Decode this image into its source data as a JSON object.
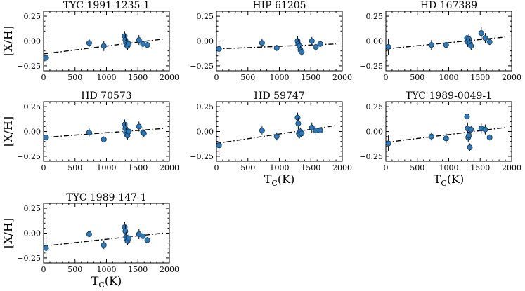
{
  "figure": {
    "xlabel_main": "T",
    "xlabel_sub": "C",
    "xlabel_unit": "(K)",
    "ylabel": "[X/H]",
    "marker_color": "#2e78b5"
  },
  "chart_data": [
    {
      "type": "scatter",
      "title": "TYC 1991-1235-1",
      "xlim": [
        0,
        2000
      ],
      "ylim": [
        -0.3,
        0.3
      ],
      "xticks": [
        "0",
        "500",
        "1000",
        "1500",
        "2000"
      ],
      "yticks": [
        "0.25",
        "0.00",
        "−0.25"
      ],
      "show_xlabel": false,
      "show_ylabel": true,
      "points": [
        {
          "x": 40,
          "y": -0.17,
          "err": 0.08
        },
        {
          "x": 725,
          "y": -0.02,
          "err": 0.04
        },
        {
          "x": 958,
          "y": -0.05,
          "err": 0.05
        },
        {
          "x": 1290,
          "y": 0.05,
          "err": 0.05
        },
        {
          "x": 1300,
          "y": 0.01,
          "err": 0.06
        },
        {
          "x": 1310,
          "y": -0.02,
          "err": 0.05
        },
        {
          "x": 1320,
          "y": -0.04,
          "err": 0.04
        },
        {
          "x": 1335,
          "y": -0.05,
          "err": 0.04
        },
        {
          "x": 1355,
          "y": -0.03,
          "err": 0.04
        },
        {
          "x": 1517,
          "y": 0.01,
          "err": 0.05
        },
        {
          "x": 1580,
          "y": -0.03,
          "err": 0.06
        },
        {
          "x": 1650,
          "y": -0.04,
          "err": 0.03
        }
      ],
      "fit": {
        "x": [
          0,
          1900
        ],
        "y": [
          -0.13,
          0.02
        ]
      }
    },
    {
      "type": "scatter",
      "title": "HIP 61205",
      "xlim": [
        0,
        2000
      ],
      "ylim": [
        -0.3,
        0.3
      ],
      "xticks": [
        "0",
        "500",
        "1000",
        "1500",
        "2000"
      ],
      "yticks": [
        "0.25",
        "0.00",
        "−0.25"
      ],
      "show_xlabel": false,
      "show_ylabel": false,
      "points": [
        {
          "x": 40,
          "y": -0.08,
          "err": 0.08
        },
        {
          "x": 725,
          "y": -0.02,
          "err": 0.04
        },
        {
          "x": 958,
          "y": -0.07,
          "err": 0.03
        },
        {
          "x": 1290,
          "y": 0.0,
          "err": 0.05
        },
        {
          "x": 1300,
          "y": -0.03,
          "err": 0.05
        },
        {
          "x": 1320,
          "y": -0.05,
          "err": 0.04
        },
        {
          "x": 1335,
          "y": -0.09,
          "err": 0.04
        },
        {
          "x": 1355,
          "y": -0.11,
          "err": 0.04
        },
        {
          "x": 1517,
          "y": 0.0,
          "err": 0.04
        },
        {
          "x": 1580,
          "y": -0.06,
          "err": 0.05
        },
        {
          "x": 1650,
          "y": -0.03,
          "err": 0.03
        }
      ],
      "fit": {
        "x": [
          0,
          1900
        ],
        "y": [
          -0.08,
          -0.03
        ]
      }
    },
    {
      "type": "scatter",
      "title": "HD 167389",
      "xlim": [
        0,
        2000
      ],
      "ylim": [
        -0.3,
        0.3
      ],
      "xticks": [
        "0",
        "500",
        "1000",
        "1500",
        "2000"
      ],
      "yticks": [
        "0.25",
        "0.00",
        "−0.25"
      ],
      "show_xlabel": false,
      "show_ylabel": false,
      "points": [
        {
          "x": 40,
          "y": -0.06,
          "err": 0.08
        },
        {
          "x": 725,
          "y": -0.04,
          "err": 0.05
        },
        {
          "x": 958,
          "y": -0.04,
          "err": 0.03
        },
        {
          "x": 1290,
          "y": 0.03,
          "err": 0.04
        },
        {
          "x": 1300,
          "y": -0.01,
          "err": 0.05
        },
        {
          "x": 1320,
          "y": 0.02,
          "err": 0.05
        },
        {
          "x": 1335,
          "y": -0.02,
          "err": 0.04
        },
        {
          "x": 1355,
          "y": -0.05,
          "err": 0.04
        },
        {
          "x": 1517,
          "y": 0.08,
          "err": 0.06
        },
        {
          "x": 1580,
          "y": 0.03,
          "err": 0.05
        },
        {
          "x": 1650,
          "y": -0.01,
          "err": 0.03
        }
      ],
      "fit": {
        "x": [
          0,
          1900
        ],
        "y": [
          -0.08,
          0.04
        ]
      }
    },
    {
      "type": "scatter",
      "title": "HD 70573",
      "xlim": [
        0,
        2000
      ],
      "ylim": [
        -0.3,
        0.3
      ],
      "xticks": [
        "0",
        "500",
        "1000",
        "1500",
        "2000"
      ],
      "yticks": [
        "0.25",
        "0.00",
        "−0.25"
      ],
      "show_xlabel": false,
      "show_ylabel": true,
      "points": [
        {
          "x": 40,
          "y": -0.06,
          "err": 0.13
        },
        {
          "x": 725,
          "y": -0.01,
          "err": 0.04
        },
        {
          "x": 958,
          "y": -0.08,
          "err": 0.03
        },
        {
          "x": 1290,
          "y": 0.07,
          "err": 0.05
        },
        {
          "x": 1300,
          "y": 0.03,
          "err": 0.06
        },
        {
          "x": 1310,
          "y": -0.01,
          "err": 0.05
        },
        {
          "x": 1320,
          "y": -0.03,
          "err": 0.04
        },
        {
          "x": 1335,
          "y": -0.04,
          "err": 0.04
        },
        {
          "x": 1355,
          "y": 0.0,
          "err": 0.04
        },
        {
          "x": 1517,
          "y": 0.05,
          "err": 0.05
        },
        {
          "x": 1580,
          "y": -0.01,
          "err": 0.06
        },
        {
          "x": 1595,
          "y": -0.02,
          "err": 0.04
        }
      ],
      "fit": {
        "x": [
          0,
          1900
        ],
        "y": [
          -0.06,
          0.03
        ]
      }
    },
    {
      "type": "scatter",
      "title": "HD 59747",
      "xlim": [
        0,
        2000
      ],
      "ylim": [
        -0.3,
        0.3
      ],
      "xticks": [
        "0",
        "500",
        "1000",
        "1500",
        "2000"
      ],
      "yticks": [
        "0.25",
        "0.00",
        "−0.25"
      ],
      "show_xlabel": true,
      "show_ylabel": false,
      "points": [
        {
          "x": 40,
          "y": -0.14,
          "err": 0.1
        },
        {
          "x": 725,
          "y": 0.01,
          "err": 0.04
        },
        {
          "x": 958,
          "y": -0.05,
          "err": 0.04
        },
        {
          "x": 1290,
          "y": 0.14,
          "err": 0.05
        },
        {
          "x": 1300,
          "y": 0.08,
          "err": 0.06
        },
        {
          "x": 1310,
          "y": -0.02,
          "err": 0.05
        },
        {
          "x": 1320,
          "y": -0.03,
          "err": 0.04
        },
        {
          "x": 1335,
          "y": 0.0,
          "err": 0.04
        },
        {
          "x": 1355,
          "y": -0.02,
          "err": 0.04
        },
        {
          "x": 1517,
          "y": 0.04,
          "err": 0.05
        },
        {
          "x": 1580,
          "y": 0.01,
          "err": 0.05
        },
        {
          "x": 1650,
          "y": 0.01,
          "err": 0.03
        }
      ],
      "fit": {
        "x": [
          0,
          1900
        ],
        "y": [
          -0.12,
          0.06
        ]
      }
    },
    {
      "type": "scatter",
      "title": "TYC 1989-0049-1",
      "xlim": [
        0,
        2000
      ],
      "ylim": [
        -0.3,
        0.3
      ],
      "xticks": [
        "0",
        "500",
        "1000",
        "1500",
        "2000"
      ],
      "yticks": [
        "0.25",
        "0.00",
        "−0.25"
      ],
      "show_xlabel": true,
      "show_ylabel": false,
      "points": [
        {
          "x": 40,
          "y": -0.12,
          "err": 0.08
        },
        {
          "x": 725,
          "y": -0.05,
          "err": 0.04
        },
        {
          "x": 958,
          "y": -0.07,
          "err": 0.05
        },
        {
          "x": 1290,
          "y": 0.15,
          "err": 0.05
        },
        {
          "x": 1300,
          "y": 0.03,
          "err": 0.06
        },
        {
          "x": 1310,
          "y": -0.06,
          "err": 0.05
        },
        {
          "x": 1320,
          "y": -0.04,
          "err": 0.04
        },
        {
          "x": 1335,
          "y": -0.16,
          "err": 0.04
        },
        {
          "x": 1355,
          "y": 0.02,
          "err": 0.04
        },
        {
          "x": 1517,
          "y": 0.03,
          "err": 0.05
        },
        {
          "x": 1580,
          "y": 0.02,
          "err": 0.05
        },
        {
          "x": 1650,
          "y": -0.06,
          "err": 0.03
        }
      ],
      "fit": {
        "x": [
          0,
          1900
        ],
        "y": [
          -0.11,
          0.04
        ]
      }
    },
    {
      "type": "scatter",
      "title": "TYC 1989-147-1",
      "xlim": [
        0,
        2000
      ],
      "ylim": [
        -0.3,
        0.3
      ],
      "xticks": [
        "0",
        "500",
        "1000",
        "1500",
        "2000"
      ],
      "yticks": [
        "0.25",
        "0.00",
        "−0.25"
      ],
      "show_xlabel": true,
      "show_ylabel": true,
      "points": [
        {
          "x": 40,
          "y": -0.15,
          "err": 0.12
        },
        {
          "x": 725,
          "y": -0.01,
          "err": 0.03
        },
        {
          "x": 958,
          "y": -0.12,
          "err": 0.04
        },
        {
          "x": 1290,
          "y": 0.06,
          "err": 0.05
        },
        {
          "x": 1300,
          "y": 0.02,
          "err": 0.06
        },
        {
          "x": 1310,
          "y": -0.04,
          "err": 0.05
        },
        {
          "x": 1320,
          "y": -0.06,
          "err": 0.04
        },
        {
          "x": 1335,
          "y": -0.08,
          "err": 0.04
        },
        {
          "x": 1355,
          "y": -0.05,
          "err": 0.04
        },
        {
          "x": 1517,
          "y": -0.01,
          "err": 0.05
        },
        {
          "x": 1580,
          "y": -0.03,
          "err": 0.05
        },
        {
          "x": 1650,
          "y": -0.07,
          "err": 0.03
        }
      ],
      "fit": {
        "x": [
          0,
          1900
        ],
        "y": [
          -0.13,
          0.0
        ]
      }
    }
  ]
}
